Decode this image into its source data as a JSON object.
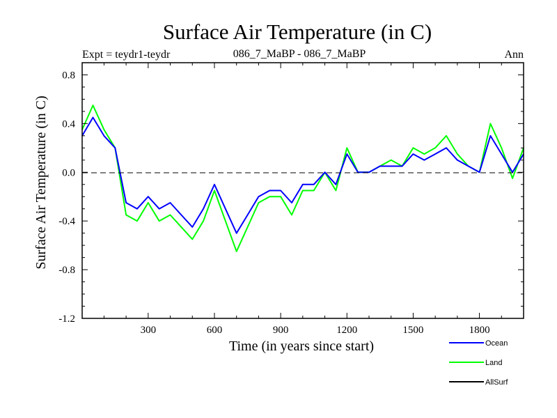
{
  "chart_data": {
    "type": "line",
    "title": "Surface Air Temperature (in C)",
    "subtitle_left": "Expt = teydr1-teydr",
    "subtitle_center": "086_7_MaBP - 086_7_MaBP",
    "subtitle_right": "Ann",
    "xlabel": "Time (in years since start)",
    "ylabel": "Surface Air Temperature (in C)",
    "xlim": [
      1,
      2000
    ],
    "ylim": [
      -1.2,
      0.9
    ],
    "x_ticks": [
      300,
      600,
      900,
      1200,
      1500,
      1800
    ],
    "x_tick_labels": [
      "300",
      "600",
      "900",
      "1200",
      "1500",
      "1800"
    ],
    "y_ticks": [
      -1.2,
      -0.8,
      -0.4,
      0.0,
      0.4,
      0.8
    ],
    "y_tick_labels": [
      "-1.2",
      "-0.8",
      "-0.4",
      "0.0",
      "0.4",
      "0.8"
    ],
    "zero_line": true,
    "grid": false,
    "legend_position": "bottom-right",
    "series": [
      {
        "name": "Ocean",
        "color": "#0000ff",
        "x": [
          1,
          50,
          100,
          150,
          200,
          250,
          300,
          350,
          400,
          450,
          500,
          550,
          600,
          650,
          700,
          750,
          800,
          850,
          900,
          950,
          1000,
          1050,
          1100,
          1150,
          1200,
          1250,
          1300,
          1350,
          1400,
          1450,
          1500,
          1550,
          1600,
          1650,
          1700,
          1750,
          1800,
          1850,
          1900,
          1950,
          2000
        ],
        "values": [
          0.3,
          0.45,
          0.3,
          0.2,
          -0.25,
          -0.3,
          -0.2,
          -0.3,
          -0.25,
          -0.35,
          -0.45,
          -0.3,
          -0.1,
          -0.3,
          -0.5,
          -0.35,
          -0.2,
          -0.15,
          -0.15,
          -0.25,
          -0.1,
          -0.1,
          0.0,
          -0.1,
          0.15,
          0.0,
          0.0,
          0.05,
          0.05,
          0.05,
          0.15,
          0.1,
          0.15,
          0.2,
          0.1,
          0.05,
          0.0,
          0.3,
          0.15,
          0.0,
          0.15
        ]
      },
      {
        "name": "Land",
        "color": "#00ff00",
        "x": [
          1,
          50,
          100,
          150,
          200,
          250,
          300,
          350,
          400,
          450,
          500,
          550,
          600,
          650,
          700,
          750,
          800,
          850,
          900,
          950,
          1000,
          1050,
          1100,
          1150,
          1200,
          1250,
          1300,
          1350,
          1400,
          1450,
          1500,
          1550,
          1600,
          1650,
          1700,
          1750,
          1800,
          1850,
          1900,
          1950,
          2000
        ],
        "values": [
          0.35,
          0.55,
          0.35,
          0.2,
          -0.35,
          -0.4,
          -0.25,
          -0.4,
          -0.35,
          -0.45,
          -0.55,
          -0.4,
          -0.15,
          -0.4,
          -0.65,
          -0.45,
          -0.25,
          -0.2,
          -0.2,
          -0.35,
          -0.15,
          -0.15,
          0.0,
          -0.15,
          0.2,
          0.0,
          0.0,
          0.05,
          0.1,
          0.05,
          0.2,
          0.15,
          0.2,
          0.3,
          0.15,
          0.05,
          0.0,
          0.4,
          0.2,
          -0.05,
          0.2
        ]
      },
      {
        "name": "AllSurf",
        "color": "#000000",
        "x": [],
        "values": []
      }
    ]
  }
}
